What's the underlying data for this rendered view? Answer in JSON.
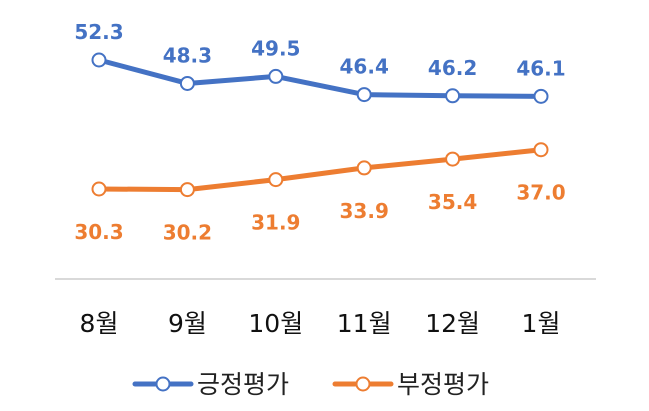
{
  "chart_data": {
    "type": "line",
    "categories": [
      "8월",
      "9월",
      "10월",
      "11월",
      "12월",
      "1월"
    ],
    "series": [
      {
        "name": "긍정평가",
        "values": [
          52.3,
          48.3,
          49.5,
          46.4,
          46.2,
          46.1
        ],
        "color": "#4472C4",
        "labels": [
          "52.3",
          "48.3",
          "49.5",
          "46.4",
          "46.2",
          "46.1"
        ],
        "label_position": "above"
      },
      {
        "name": "부정평가",
        "values": [
          30.3,
          30.2,
          31.9,
          33.9,
          35.4,
          37.0
        ],
        "color": "#ED7D31",
        "labels": [
          "30.3",
          "30.2",
          "31.9",
          "33.9",
          "35.4",
          "37.0"
        ],
        "label_position": "below"
      }
    ],
    "title": "",
    "xlabel": "",
    "ylabel": "",
    "grid": false,
    "legend": "bottom",
    "axis_line_color": "#D9D9D9"
  }
}
